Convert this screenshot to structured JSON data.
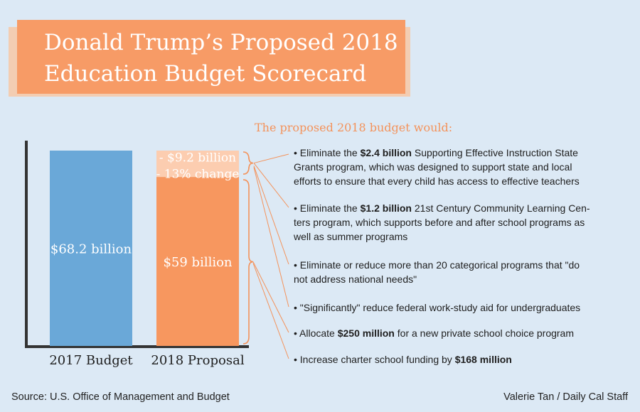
{
  "title": {
    "line1": "Donald Trump’s Proposed 2018",
    "line2": "Education Budget Scorecard"
  },
  "colors": {
    "background": "#dce9f5",
    "title_bg": "#f79b66",
    "bar_2017": "#6aa8d8",
    "bar_2018": "#f7975f",
    "cut_segment": "#fccdb0",
    "accent": "#f4925a",
    "axis": "#333333"
  },
  "chart_data": {
    "type": "bar",
    "title": "Donald Trump’s Proposed 2018 Education Budget Scorecard",
    "categories": [
      "2017 Budget",
      "2018 Proposal"
    ],
    "unit": "billion USD",
    "series": [
      {
        "name": "Budget",
        "values": [
          68.2,
          59
        ]
      },
      {
        "name": "Reduction",
        "values": [
          0,
          9.2
        ]
      }
    ],
    "bar_labels": [
      "$68.2 billion",
      "$59 billion"
    ],
    "cut_label": {
      "line1": "- $9.2 billion",
      "line2": "- 13% change"
    },
    "ylim": [
      0,
      75
    ],
    "xlabel": "",
    "ylabel": "",
    "grid": false
  },
  "bullets_heading": "The proposed 2018 budget would:",
  "bullets": [
    {
      "lines": [
        [
          {
            "t": "• Eliminate the "
          },
          {
            "t": "$2.4 billion",
            "b": true
          },
          {
            "t": " Supporting Effective Instruction State"
          }
        ],
        [
          {
            "t": "Grants program, which was designed to support state and local"
          }
        ],
        [
          {
            "t": "efforts to ensure that every child has access to effective teachers"
          }
        ]
      ]
    },
    {
      "lines": [
        [
          {
            "t": "• Eliminate the "
          },
          {
            "t": "$1.2 billion",
            "b": true
          },
          {
            "t": " 21st Century Community Learning Cen-"
          }
        ],
        [
          {
            "t": "ters program, which supports before and after school programs as"
          }
        ],
        [
          {
            "t": "well as summer programs"
          }
        ]
      ]
    },
    {
      "lines": [
        [
          {
            "t": "• Eliminate or reduce more than 20 categorical programs that \"do"
          }
        ],
        [
          {
            "t": "not address national needs\""
          }
        ]
      ]
    },
    {
      "lines": [
        [
          {
            "t": "• \"Significantly\" reduce federal work-study aid for undergraduates"
          }
        ]
      ]
    },
    {
      "lines": [
        [
          {
            "t": "• Allocate "
          },
          {
            "t": "$250 million",
            "b": true
          },
          {
            "t": " for a new private school choice program"
          }
        ]
      ]
    },
    {
      "lines": [
        [
          {
            "t": "• Increase charter school funding by "
          },
          {
            "t": "$168 million",
            "b": true
          }
        ]
      ]
    }
  ],
  "footer": {
    "source": "Source: U.S. Office of Management and Budget",
    "credit": "Valerie Tan / Daily Cal Staff"
  }
}
